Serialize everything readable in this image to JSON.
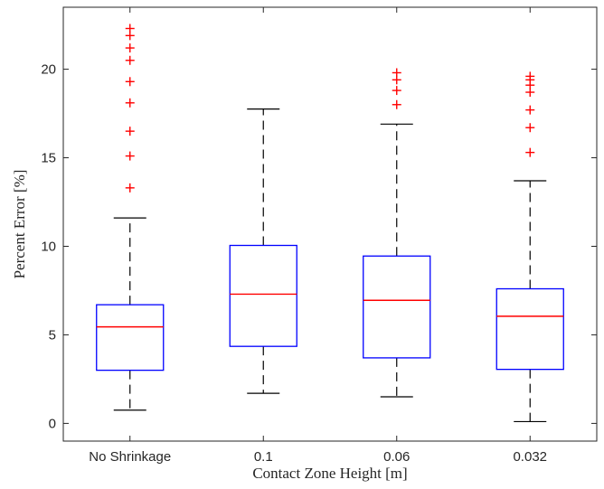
{
  "chart_data": {
    "type": "box",
    "xlabel": "Contact Zone Height [m]",
    "ylabel": "Percent Error [%]",
    "ylim": [
      -1,
      23.5
    ],
    "yticks": [
      0,
      5,
      10,
      15,
      20
    ],
    "grid": false,
    "colors": {
      "box": "#0000ff",
      "median": "#ff0000",
      "whisker": "#000000",
      "outlier": "#ff0000",
      "axis": "#262626"
    },
    "categories": [
      "No Shrinkage",
      "0.1",
      "0.06",
      "0.032"
    ],
    "boxes": [
      {
        "category": "No Shrinkage",
        "whisker_low": 0.75,
        "q1": 3.0,
        "median": 5.45,
        "q3": 6.7,
        "whisker_high": 11.6,
        "outliers": [
          13.3,
          15.1,
          16.5,
          18.1,
          19.3,
          20.5,
          21.2,
          21.9,
          22.3
        ]
      },
      {
        "category": "0.1",
        "whisker_low": 1.7,
        "q1": 4.35,
        "median": 7.3,
        "q3": 10.05,
        "whisker_high": 17.75,
        "outliers": []
      },
      {
        "category": "0.06",
        "whisker_low": 1.5,
        "q1": 3.7,
        "median": 6.95,
        "q3": 9.45,
        "whisker_high": 16.9,
        "outliers": [
          18.0,
          18.8,
          19.4,
          19.8
        ]
      },
      {
        "category": "0.032",
        "whisker_low": 0.1,
        "q1": 3.05,
        "median": 6.05,
        "q3": 7.6,
        "whisker_high": 13.7,
        "outliers": [
          15.3,
          16.7,
          17.7,
          18.7,
          19.1,
          19.4,
          19.6
        ]
      }
    ]
  }
}
